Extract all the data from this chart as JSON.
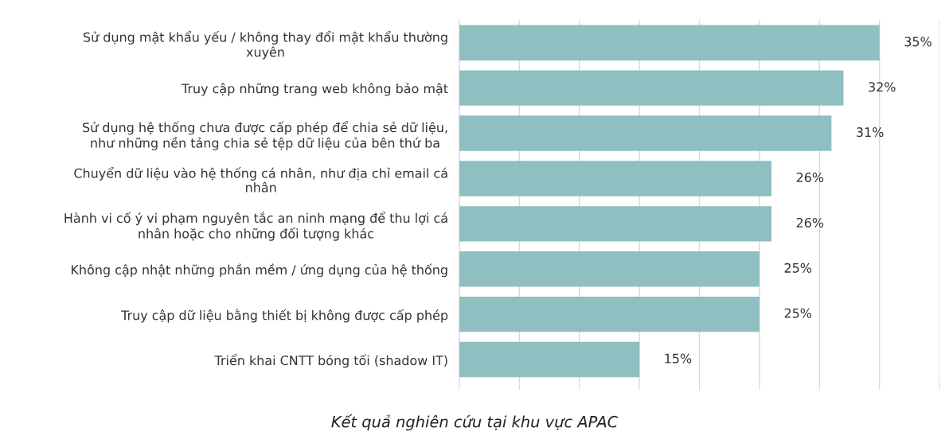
{
  "chart_data": {
    "type": "bar",
    "orientation": "horizontal",
    "categories": [
      "Sử dụng mật khẩu yếu / không thay đổi mật khẩu thường\nxuyên",
      "Truy cập những trang web không bảo mật",
      "Sử dụng hệ thống chưa được cấp phép để chia sẻ dữ liệu,\nnhư những nền tảng chia sẻ tệp dữ liệu của bên thứ ba",
      "Chuyển dữ liệu vào hệ thống cá nhân, như địa chỉ email cá\nnhân",
      "Hành vi cố ý vi phạm nguyên tắc an ninh mạng để thu lợi cá\nnhân hoặc cho những đối tượng khác",
      "Không cập nhật những phần mềm / ứng dụng của hệ thống",
      "Truy cập dữ liệu bằng thiết bị không được cấp phép",
      "Triển khai CNTT bóng tối (shadow IT)"
    ],
    "values": [
      35,
      32,
      31,
      26,
      26,
      25,
      25,
      15
    ],
    "value_labels": [
      "35%",
      "32%",
      "31%",
      "26%",
      "26%",
      "25%",
      "25%",
      "15%"
    ],
    "color": "#8fbfc0",
    "xlim": [
      0,
      40
    ],
    "xticks": [
      {
        "value": 0,
        "label": null
      },
      {
        "value": 5,
        "label": null
      },
      {
        "value": 10,
        "label": null
      },
      {
        "value": 15,
        "label": null
      },
      {
        "value": 20,
        "label": null
      },
      {
        "value": 25,
        "label": null
      },
      {
        "value": 30,
        "label": null
      },
      {
        "value": 35,
        "label": null
      },
      {
        "value": 40,
        "label": null
      }
    ],
    "tick_labels": "y",
    "grid": "x",
    "legend": false,
    "annotations": [
      "Kết quả nghiên cứu tại khu vực APAC"
    ]
  }
}
